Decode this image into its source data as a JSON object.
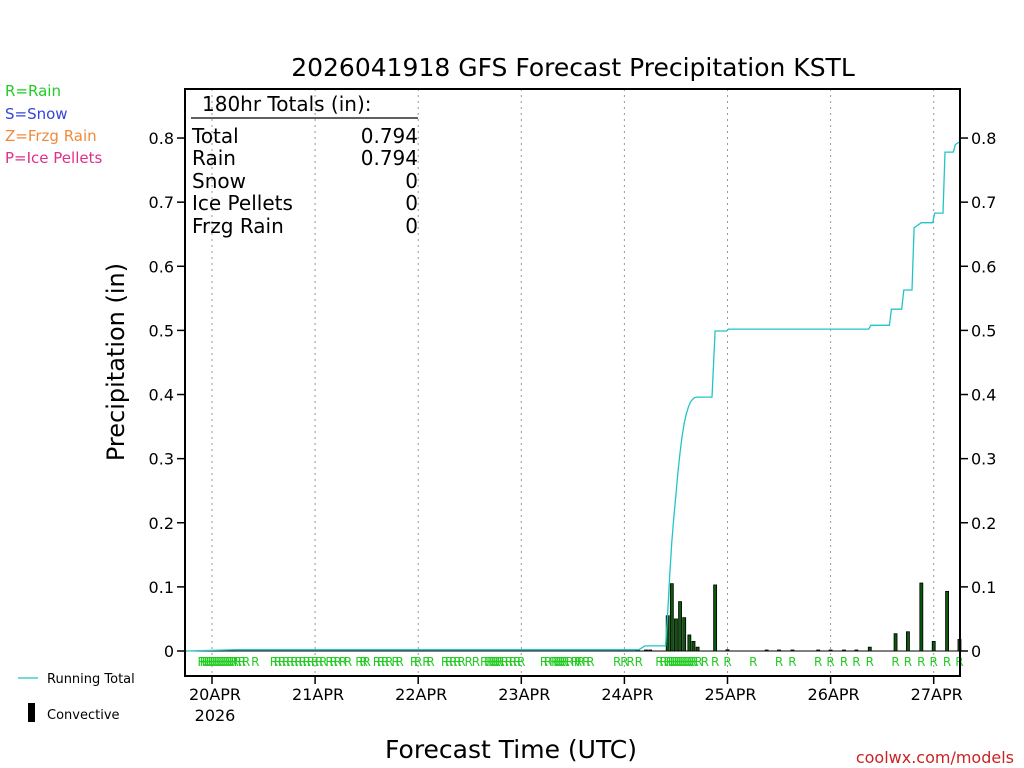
{
  "colors": {
    "rain": "#22cc22",
    "snow": "#3344dd",
    "frzg_rain": "#f08a3c",
    "ice_pellets": "#e0308a",
    "running_total": "#22c4c8",
    "bar_outline": "#000000",
    "bar_fill": "#0b5a0b",
    "watermark": "#cc2222"
  },
  "legend_top": {
    "rain": "R=Rain",
    "snow": "S=Snow",
    "frzg_rain": "Z=Frzg Rain",
    "ice_pellets": "P=Ice Pellets"
  },
  "legend_bottom": {
    "running_total": "Running Total",
    "convective": "Convective"
  },
  "watermark": "coolwx.com/models",
  "totals_box": {
    "header": "180hr Totals (in):",
    "rows": [
      {
        "label": "Total",
        "value": "0.794"
      },
      {
        "label": "Rain",
        "value": "0.794"
      },
      {
        "label": "Snow",
        "value": "0"
      },
      {
        "label": "Ice Pellets",
        "value": "0"
      },
      {
        "label": "Frzg Rain",
        "value": "0"
      }
    ]
  },
  "chart_data": {
    "type": "bar",
    "title": "2026041918 GFS Forecast Precipitation KSTL",
    "xlabel": "Forecast Time (UTC)",
    "ylabel": "Precipitation (in)",
    "x_unit": "days since 2026-04-20 00Z",
    "xlim": [
      -0.25,
      7.25
    ],
    "ylim": [
      -0.04,
      0.88
    ],
    "yticks": [
      "0",
      "0.1",
      "0.2",
      "0.3",
      "0.4",
      "0.5",
      "0.6",
      "0.7",
      "0.8"
    ],
    "ytick_values": [
      0,
      0.1,
      0.2,
      0.3,
      0.4,
      0.5,
      0.6,
      0.7,
      0.8
    ],
    "xticks": [
      {
        "x": 0,
        "label": "20APR",
        "sub": "2026"
      },
      {
        "x": 1,
        "label": "21APR",
        "sub": ""
      },
      {
        "x": 2,
        "label": "22APR",
        "sub": ""
      },
      {
        "x": 3,
        "label": "23APR",
        "sub": ""
      },
      {
        "x": 4,
        "label": "24APR",
        "sub": ""
      },
      {
        "x": 5,
        "label": "25APR",
        "sub": ""
      },
      {
        "x": 6,
        "label": "26APR",
        "sub": ""
      },
      {
        "x": 7,
        "label": "27APR",
        "sub": ""
      }
    ],
    "grid": "vertical dotted",
    "bars": {
      "name": "Precipitation amount",
      "x": [
        4.13,
        4.21,
        4.25,
        4.42,
        4.46,
        4.5,
        4.54,
        4.58,
        4.63,
        4.67,
        4.71,
        4.88,
        5.0,
        5.38,
        5.5,
        5.63,
        5.88,
        6.0,
        6.13,
        6.25,
        6.38,
        6.63,
        6.75,
        6.88,
        7.0,
        7.13,
        7.25
      ],
      "values": [
        0.001,
        0.001,
        0.001,
        0.055,
        0.105,
        0.05,
        0.077,
        0.052,
        0.025,
        0.015,
        0.006,
        0.103,
        0.002,
        0.001,
        0.001,
        0.001,
        0.001,
        0.001,
        0.001,
        0.001,
        0.006,
        0.027,
        0.03,
        0.106,
        0.015,
        0.093,
        0.018
      ]
    },
    "running_total": {
      "name": "Running Total",
      "x": [
        -0.25,
        0.25,
        4.14,
        4.2,
        4.4,
        4.42,
        4.44,
        4.46,
        4.48,
        4.5,
        4.52,
        4.54,
        4.56,
        4.58,
        4.6,
        4.62,
        4.64,
        4.66,
        4.68,
        4.7,
        4.85,
        4.88,
        4.99,
        5.01,
        6.37,
        6.39,
        6.57,
        6.59,
        6.69,
        6.71,
        6.79,
        6.81,
        6.88,
        6.89,
        6.99,
        7.01,
        7.09,
        7.11,
        7.19,
        7.21,
        7.25
      ],
      "values": [
        0.0,
        0.002,
        0.002,
        0.008,
        0.008,
        0.06,
        0.12,
        0.17,
        0.21,
        0.245,
        0.28,
        0.31,
        0.335,
        0.355,
        0.37,
        0.38,
        0.388,
        0.392,
        0.395,
        0.396,
        0.396,
        0.499,
        0.499,
        0.502,
        0.502,
        0.508,
        0.508,
        0.533,
        0.533,
        0.563,
        0.563,
        0.66,
        0.668,
        0.668,
        0.668,
        0.683,
        0.683,
        0.778,
        0.778,
        0.79,
        0.794
      ]
    },
    "ptype_markers": {
      "symbol": "R",
      "x": [
        -0.1,
        -0.08,
        -0.06,
        -0.04,
        -0.02,
        0.0,
        0.02,
        0.04,
        0.06,
        0.08,
        0.1,
        0.12,
        0.14,
        0.16,
        0.18,
        0.2,
        0.22,
        0.25,
        0.29,
        0.33,
        0.42,
        0.6,
        0.64,
        0.68,
        0.72,
        0.76,
        0.8,
        0.84,
        0.88,
        0.92,
        0.96,
        1.0,
        1.04,
        1.08,
        1.14,
        1.18,
        1.22,
        1.27,
        1.32,
        1.43,
        1.47,
        1.5,
        1.6,
        1.64,
        1.68,
        1.72,
        1.78,
        1.82,
        1.96,
        2.0,
        2.08,
        2.12,
        2.26,
        2.3,
        2.34,
        2.38,
        2.42,
        2.49,
        2.56,
        2.64,
        2.68,
        2.7,
        2.72,
        2.74,
        2.76,
        2.78,
        2.8,
        2.84,
        2.88,
        2.92,
        2.96,
        3.0,
        3.22,
        3.26,
        3.31,
        3.33,
        3.35,
        3.37,
        3.39,
        3.41,
        3.43,
        3.47,
        3.52,
        3.55,
        3.58,
        3.63,
        3.67,
        3.93,
        4.0,
        4.06,
        4.14,
        4.34,
        4.38,
        4.42,
        4.44,
        4.46,
        4.48,
        4.5,
        4.52,
        4.54,
        4.56,
        4.58,
        4.6,
        4.62,
        4.64,
        4.66,
        4.68,
        4.72,
        4.78,
        4.88,
        5.0,
        5.25,
        5.5,
        5.63,
        5.88,
        6.0,
        6.13,
        6.25,
        6.38,
        6.63,
        6.75,
        6.88,
        7.0,
        7.13,
        7.25
      ]
    }
  }
}
